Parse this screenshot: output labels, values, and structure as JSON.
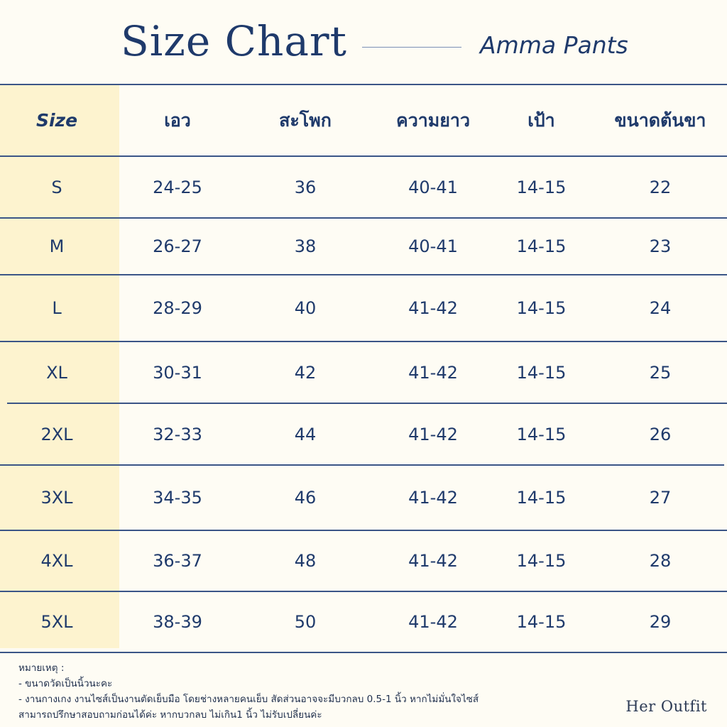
{
  "header": {
    "title": "Size Chart",
    "subtitle": "Amma Pants"
  },
  "table": {
    "columns": [
      "Size",
      "เอว",
      "สะโพก",
      "ความยาว",
      "เป้า",
      "ขนาดต้นขา"
    ],
    "rows": [
      [
        "S",
        "24-25",
        "36",
        "40-41",
        "14-15",
        "22"
      ],
      [
        "M",
        "26-27",
        "38",
        "40-41",
        "14-15",
        "23"
      ],
      [
        "L",
        "28-29",
        "40",
        "41-42",
        "14-15",
        "24"
      ],
      [
        "XL",
        "30-31",
        "42",
        "41-42",
        "14-15",
        "25"
      ],
      [
        "2XL",
        "32-33",
        "44",
        "41-42",
        "14-15",
        "26"
      ],
      [
        "3XL",
        "34-35",
        "46",
        "41-42",
        "14-15",
        "27"
      ],
      [
        "4XL",
        "36-37",
        "48",
        "41-42",
        "14-15",
        "28"
      ],
      [
        "5XL",
        "38-39",
        "50",
        "41-42",
        "14-15",
        "29"
      ]
    ]
  },
  "notes": {
    "label": "หมายเหตุ :",
    "lines": [
      "- ขนาดวัดเป็นนิ้วนะคะ",
      "- งานกางเกง งานไซส์เป็นงานตัดเย็บมือ โดยช่างหลายคนเย็บ สัดส่วนอาจจะมีบวกลบ 0.5-1 นิ้ว หากไม่มั่นใจไซส์",
      "สามารถปรึกษาสอบถามก่อนได้ค่ะ หากบวกลบ ไม่เกิน1 นิ้ว ไม่รับเปลี่ยนค่ะ"
    ]
  },
  "brand": "Her Outfit",
  "colors": {
    "background": "#fefcf4",
    "size_column": "#fdf3cf",
    "text": "#1f3a6b",
    "rule": "#3b5587"
  }
}
